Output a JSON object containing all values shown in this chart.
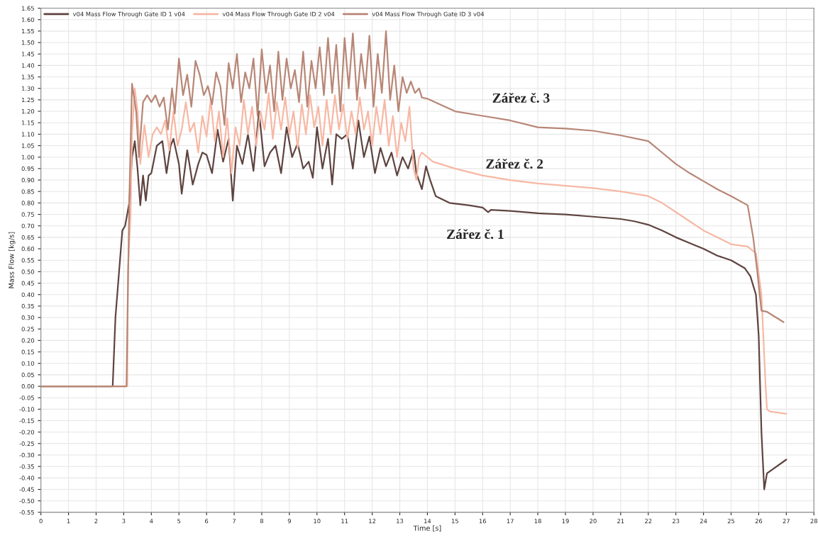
{
  "chart_data": {
    "type": "line",
    "xlabel": "Time [s]",
    "ylabel": "Mass Flow [kg/s]",
    "xlim": [
      0,
      28
    ],
    "ylim": [
      -0.55,
      1.65
    ],
    "xticks": [
      0,
      1,
      2,
      3,
      4,
      5,
      6,
      7,
      8,
      9,
      10,
      11,
      12,
      13,
      14,
      15,
      16,
      17,
      18,
      19,
      20,
      21,
      22,
      23,
      24,
      25,
      26,
      27,
      28
    ],
    "yticks": [
      {
        "value": -0.55,
        "label": "-0.55"
      },
      {
        "value": -0.5,
        "label": "-0.50"
      },
      {
        "value": -0.45,
        "label": "-0.45"
      },
      {
        "value": -0.4,
        "label": "-0.40"
      },
      {
        "value": -0.35,
        "label": "-0.35"
      },
      {
        "value": -0.3,
        "label": "-0.30"
      },
      {
        "value": -0.25,
        "label": "-0.25"
      },
      {
        "value": -0.2,
        "label": "-0.20"
      },
      {
        "value": -0.15,
        "label": "-0.15"
      },
      {
        "value": -0.1,
        "label": "-0.10"
      },
      {
        "value": -0.05,
        "label": "-0.05"
      },
      {
        "value": 0,
        "label": "0.00"
      },
      {
        "value": 0.05,
        "label": "0.05"
      },
      {
        "value": 0.1,
        "label": "0.10"
      },
      {
        "value": 0.15,
        "label": "0.15"
      },
      {
        "value": 0.2,
        "label": "0.20"
      },
      {
        "value": 0.25,
        "label": "0.25"
      },
      {
        "value": 0.3,
        "label": "0.30"
      },
      {
        "value": 0.35,
        "label": "0.35"
      },
      {
        "value": 0.4,
        "label": "0.40"
      },
      {
        "value": 0.45,
        "label": "0.45"
      },
      {
        "value": 0.5,
        "label": "0.50"
      },
      {
        "value": 0.55,
        "label": "0.55"
      },
      {
        "value": 0.6,
        "label": "0.60"
      },
      {
        "value": 0.65,
        "label": "0.65"
      },
      {
        "value": 0.7,
        "label": "0.70"
      },
      {
        "value": 0.75,
        "label": "0.75"
      },
      {
        "value": 0.8,
        "label": "0.80"
      },
      {
        "value": 0.85,
        "label": "0.85"
      },
      {
        "value": 0.9,
        "label": "0.90"
      },
      {
        "value": 0.95,
        "label": "0.95"
      },
      {
        "value": 1.0,
        "label": "1.00"
      },
      {
        "value": 1.05,
        "label": "1.05"
      },
      {
        "value": 1.1,
        "label": "1.10"
      },
      {
        "value": 1.15,
        "label": "1.15"
      },
      {
        "value": 1.2,
        "label": "1.20"
      },
      {
        "value": 1.25,
        "label": "1.25"
      },
      {
        "value": 1.3,
        "label": "1.30"
      },
      {
        "value": 1.35,
        "label": "1.35"
      },
      {
        "value": 1.4,
        "label": "1.40"
      },
      {
        "value": 1.45,
        "label": "1.45"
      },
      {
        "value": 1.5,
        "label": "1.50"
      },
      {
        "value": 1.55,
        "label": "1.55"
      },
      {
        "value": 1.6,
        "label": "1.60"
      },
      {
        "value": 1.65,
        "label": "1.65"
      }
    ],
    "grid": true,
    "legend": "top left",
    "line_style": "solid",
    "annotations": [
      "Zářez č. 3",
      "Zářez č. 2",
      "Zářez č. 1"
    ],
    "series": [
      {
        "name": "v04 Mass Flow Through Gate ID 1 v04",
        "color": "#5e4440",
        "x": [
          0,
          2.6,
          2.7,
          2.95,
          3.05,
          3.2,
          3.3,
          3.4,
          3.5,
          3.6,
          3.7,
          3.8,
          3.9,
          4.0,
          4.2,
          4.4,
          4.55,
          4.7,
          4.8,
          5.0,
          5.1,
          5.3,
          5.5,
          5.7,
          5.85,
          6.0,
          6.2,
          6.4,
          6.6,
          6.8,
          6.95,
          7.1,
          7.3,
          7.5,
          7.7,
          7.9,
          8.1,
          8.3,
          8.5,
          8.7,
          8.9,
          9.1,
          9.3,
          9.5,
          9.7,
          9.85,
          10.0,
          10.2,
          10.4,
          10.55,
          10.7,
          10.9,
          11.1,
          11.3,
          11.5,
          11.7,
          11.9,
          12.1,
          12.3,
          12.5,
          12.7,
          12.9,
          13.1,
          13.3,
          13.5,
          13.6,
          13.8,
          13.95,
          14.1,
          14.3,
          14.8,
          15.5,
          16.0,
          16.2,
          16.3,
          17,
          18,
          19,
          20,
          21,
          21.5,
          22,
          22.5,
          23,
          23.5,
          24,
          24.5,
          25,
          25.5,
          25.7,
          25.9,
          26.0,
          26.1,
          26.2,
          26.3,
          27.0
        ],
        "values": [
          0,
          0,
          0.3,
          0.68,
          0.7,
          0.8,
          1.0,
          1.07,
          0.95,
          0.79,
          0.92,
          0.81,
          0.92,
          0.93,
          1.05,
          1.07,
          0.93,
          1.05,
          1.08,
          0.97,
          0.84,
          1.03,
          0.88,
          0.97,
          1.02,
          1.01,
          0.93,
          1.12,
          0.98,
          1.08,
          0.81,
          1.05,
          0.97,
          1.1,
          0.94,
          1.2,
          0.96,
          1.02,
          1.05,
          0.93,
          1.13,
          1.0,
          1.06,
          0.95,
          0.98,
          0.91,
          1.13,
          0.95,
          1.08,
          0.88,
          1.1,
          1.08,
          1.1,
          0.95,
          1.16,
          1.0,
          1.09,
          0.93,
          1.04,
          0.96,
          1.02,
          0.92,
          1.0,
          0.95,
          1.03,
          0.93,
          0.86,
          0.96,
          0.9,
          0.83,
          0.8,
          0.79,
          0.78,
          0.76,
          0.77,
          0.765,
          0.755,
          0.75,
          0.74,
          0.73,
          0.72,
          0.705,
          0.68,
          0.65,
          0.625,
          0.6,
          0.57,
          0.55,
          0.515,
          0.48,
          0.4,
          0.22,
          -0.2,
          -0.45,
          -0.38,
          -0.32
        ]
      },
      {
        "name": "v04 Mass Flow Through Gate ID 2 v04",
        "color": "#f7b8a4",
        "x": [
          0,
          3.13,
          3.15,
          3.25,
          3.3,
          3.4,
          3.5,
          3.6,
          3.75,
          3.9,
          4.05,
          4.2,
          4.35,
          4.5,
          4.65,
          4.8,
          4.95,
          5.1,
          5.25,
          5.4,
          5.55,
          5.7,
          5.85,
          6.0,
          6.15,
          6.3,
          6.45,
          6.6,
          6.75,
          6.9,
          7.05,
          7.2,
          7.35,
          7.5,
          7.65,
          7.8,
          7.95,
          8.1,
          8.25,
          8.4,
          8.55,
          8.7,
          8.85,
          9.0,
          9.15,
          9.3,
          9.45,
          9.6,
          9.75,
          9.9,
          10.05,
          10.2,
          10.35,
          10.5,
          10.65,
          10.8,
          10.95,
          11.1,
          11.25,
          11.4,
          11.55,
          11.7,
          11.85,
          12.0,
          12.15,
          12.3,
          12.45,
          12.6,
          12.75,
          12.9,
          13.05,
          13.2,
          13.35,
          13.5,
          13.6,
          13.7,
          13.8,
          14.2,
          15,
          16,
          17,
          18,
          19,
          20,
          21,
          22,
          22.5,
          23,
          23.5,
          24,
          24.5,
          25,
          25.6,
          25.9,
          26.1,
          26.25,
          26.3,
          26.4,
          27.0
        ],
        "values": [
          0,
          0,
          0.5,
          0.75,
          1.1,
          1.3,
          1.2,
          0.97,
          1.14,
          1.0,
          1.1,
          1.13,
          1.1,
          1.16,
          1.03,
          1.2,
          1.05,
          1.12,
          1.24,
          1.11,
          1.15,
          1.02,
          1.18,
          1.09,
          1.25,
          1.07,
          1.2,
          1.0,
          1.17,
          0.93,
          1.13,
          1.05,
          1.25,
          1.1,
          1.22,
          1.05,
          1.2,
          1.12,
          1.28,
          1.08,
          1.24,
          1.12,
          1.26,
          1.1,
          1.2,
          1.04,
          1.23,
          1.1,
          1.27,
          1.13,
          1.22,
          1.05,
          1.25,
          1.1,
          1.27,
          1.12,
          1.23,
          1.08,
          1.2,
          1.1,
          1.26,
          1.12,
          1.2,
          1.05,
          1.22,
          1.1,
          1.25,
          1.05,
          1.18,
          1.0,
          1.15,
          1.07,
          1.22,
          0.95,
          0.9,
          1.0,
          1.02,
          0.98,
          0.95,
          0.92,
          0.9,
          0.885,
          0.875,
          0.865,
          0.85,
          0.83,
          0.8,
          0.76,
          0.72,
          0.68,
          0.65,
          0.62,
          0.61,
          0.58,
          0.4,
          0.0,
          -0.1,
          -0.11,
          -0.12
        ]
      },
      {
        "name": "v04 Mass Flow Through Gate ID 3 v04",
        "color": "#b88676",
        "x": [
          0,
          3.1,
          3.2,
          3.3,
          3.45,
          3.55,
          3.7,
          3.85,
          4.0,
          4.15,
          4.3,
          4.45,
          4.6,
          4.75,
          4.85,
          5.0,
          5.15,
          5.3,
          5.45,
          5.6,
          5.75,
          5.9,
          6.05,
          6.2,
          6.35,
          6.5,
          6.65,
          6.8,
          6.95,
          7.1,
          7.25,
          7.4,
          7.55,
          7.7,
          7.85,
          8.0,
          8.15,
          8.3,
          8.45,
          8.6,
          8.75,
          8.9,
          9.05,
          9.2,
          9.35,
          9.5,
          9.65,
          9.8,
          9.95,
          10.1,
          10.25,
          10.4,
          10.55,
          10.7,
          10.85,
          11.0,
          11.15,
          11.3,
          11.45,
          11.6,
          11.75,
          11.9,
          12.05,
          12.2,
          12.35,
          12.5,
          12.65,
          12.8,
          12.95,
          13.1,
          13.25,
          13.4,
          13.55,
          13.7,
          13.8,
          14,
          15,
          16,
          17,
          18,
          19,
          20,
          21,
          22,
          22.5,
          23,
          23.5,
          24,
          24.5,
          25,
          25.6,
          25.8,
          25.95,
          26.1,
          26.3,
          26.9
        ],
        "values": [
          0,
          0,
          0.8,
          1.32,
          1.2,
          1.0,
          1.24,
          1.27,
          1.24,
          1.27,
          1.22,
          1.26,
          1.12,
          1.3,
          1.19,
          1.43,
          1.27,
          1.36,
          1.22,
          1.42,
          1.36,
          1.27,
          1.31,
          1.23,
          1.37,
          1.31,
          1.14,
          1.41,
          1.3,
          1.45,
          1.24,
          1.37,
          1.3,
          1.43,
          1.18,
          1.47,
          1.28,
          1.4,
          1.2,
          1.46,
          1.25,
          1.43,
          1.3,
          1.38,
          1.24,
          1.46,
          1.22,
          1.42,
          1.3,
          1.48,
          1.27,
          1.52,
          1.28,
          1.49,
          1.2,
          1.52,
          1.3,
          1.54,
          1.25,
          1.45,
          1.3,
          1.53,
          1.22,
          1.45,
          1.28,
          1.55,
          1.25,
          1.4,
          1.2,
          1.35,
          1.28,
          1.33,
          1.28,
          1.3,
          1.26,
          1.255,
          1.2,
          1.18,
          1.16,
          1.13,
          1.125,
          1.115,
          1.095,
          1.07,
          1.02,
          0.97,
          0.93,
          0.895,
          0.86,
          0.83,
          0.79,
          0.65,
          0.5,
          0.33,
          0.325,
          0.28
        ]
      }
    ]
  }
}
